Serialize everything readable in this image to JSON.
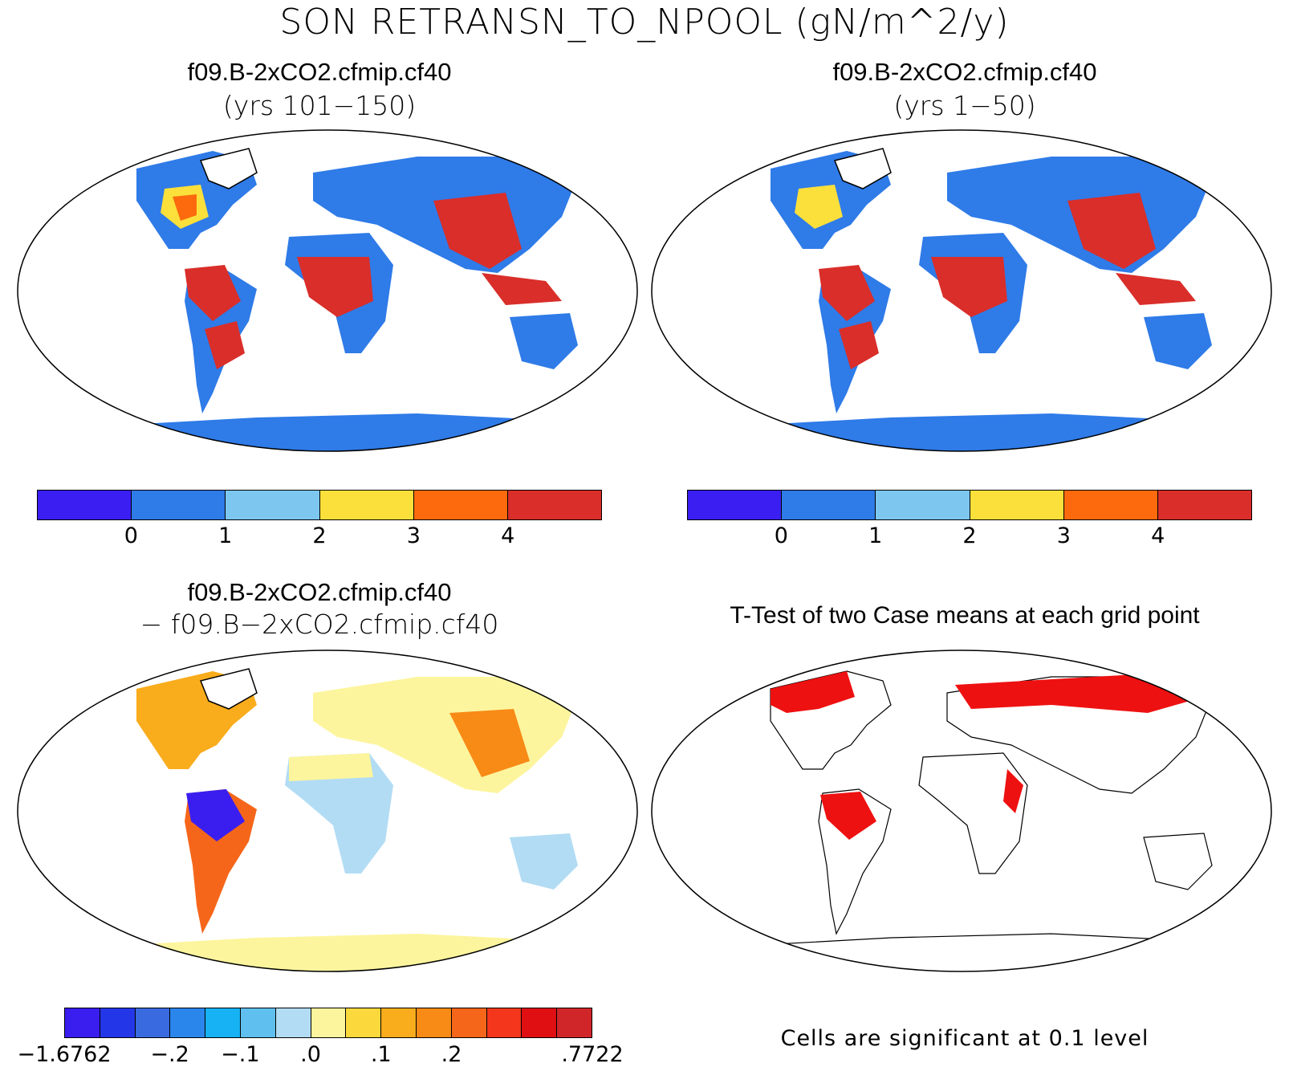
{
  "figure": {
    "title": "SON RETRANSN_TO_NPOOL (gN/m^2/y)"
  },
  "panels": {
    "top_left": {
      "case": "f09.B-2xCO2.cfmip.cf40",
      "years": "(yrs 101−150)"
    },
    "top_right": {
      "case": "f09.B-2xCO2.cfmip.cf40",
      "years": "(yrs 1−50)"
    },
    "bottom_left": {
      "case": "f09.B-2xCO2.cfmip.cf40",
      "minus_case": "− f09.B−2xCO2.cfmip.cf40"
    },
    "bottom_right": {
      "title": "T-Test of two Case means at each grid point",
      "note": "Cells are significant at 0.1 level"
    }
  },
  "colorbars": {
    "mean": {
      "colors": [
        "#3b1ef2",
        "#2f7be8",
        "#7dc6f0",
        "#fbe03b",
        "#fc6a0d",
        "#d92e2a"
      ],
      "tick_labels": [
        "0",
        "1",
        "2",
        "3",
        "4"
      ]
    },
    "diff": {
      "colors": [
        "#3a1ef0",
        "#2437e8",
        "#3a6ae0",
        "#2b86ec",
        "#16b2f4",
        "#5fc0f0",
        "#b2dcf4",
        "#fdf59e",
        "#fbd83b",
        "#f9ac1c",
        "#f88a16",
        "#f6661a",
        "#f4361d",
        "#df0f12",
        "#d0262a"
      ],
      "tick_labels": [
        "−1.6762",
        "−.2",
        "−.1",
        ".0",
        ".1",
        ".2",
        ".7722"
      ]
    },
    "significance_color": "#ee1111"
  }
}
